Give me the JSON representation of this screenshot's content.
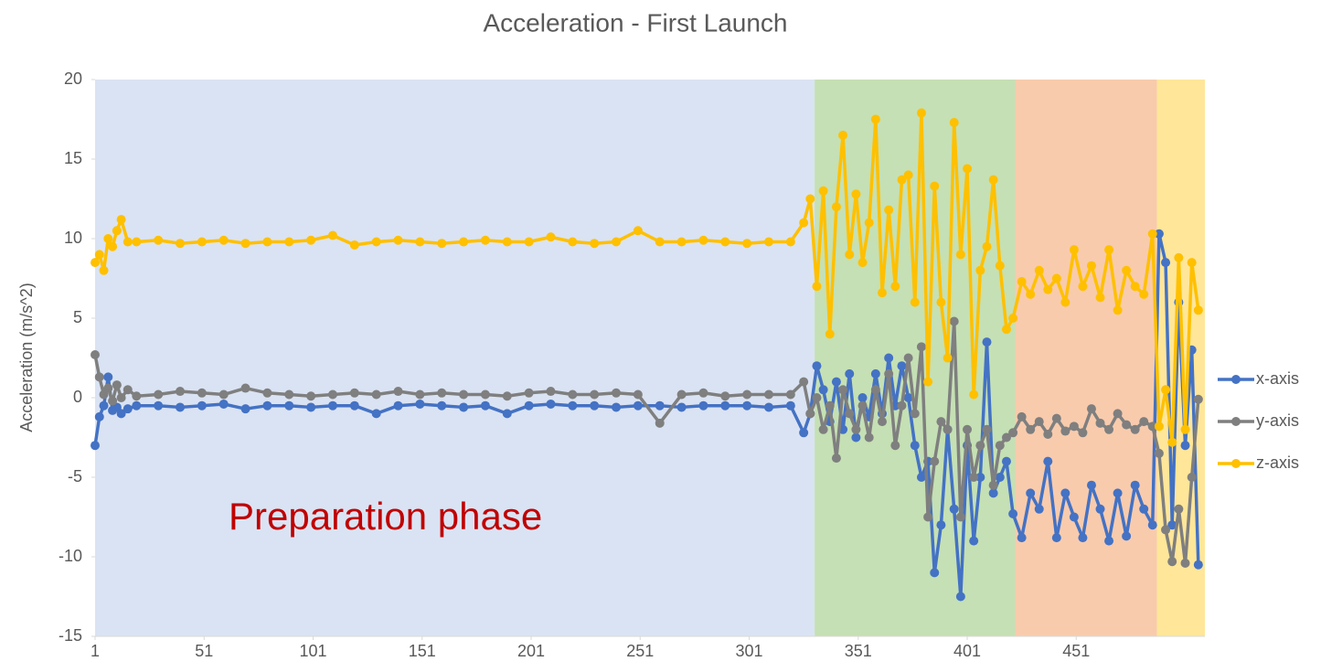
{
  "chart_data": {
    "type": "line",
    "title": "Acceleration - First Launch",
    "y_label": "Acceleration (m/s^2)",
    "annotation": "Preparation phase",
    "xlim": [
      1,
      510
    ],
    "ylim": [
      -15,
      20
    ],
    "xticks": [
      1,
      51,
      101,
      151,
      201,
      251,
      301,
      351,
      401,
      451
    ],
    "yticks": [
      -15,
      -10,
      -5,
      0,
      5,
      10,
      15,
      20
    ],
    "grid": false,
    "legend": "right",
    "phases": [
      {
        "start": 1,
        "end": 331,
        "color": "#dae3f3"
      },
      {
        "start": 331,
        "end": 423,
        "color": "#c5e0b4"
      },
      {
        "start": 423,
        "end": 488,
        "color": "#f8cbad"
      },
      {
        "start": 488,
        "end": 510,
        "color": "#ffe699"
      }
    ],
    "x": [
      1,
      3,
      5,
      7,
      9,
      11,
      13,
      16,
      20,
      30,
      40,
      50,
      60,
      70,
      80,
      90,
      100,
      110,
      120,
      130,
      140,
      150,
      160,
      170,
      180,
      190,
      200,
      210,
      220,
      230,
      240,
      250,
      260,
      270,
      280,
      290,
      300,
      310,
      320,
      326,
      329,
      332,
      335,
      338,
      341,
      344,
      347,
      350,
      353,
      356,
      359,
      362,
      365,
      368,
      371,
      374,
      377,
      380,
      383,
      386,
      389,
      392,
      395,
      398,
      401,
      404,
      407,
      410,
      413,
      416,
      419,
      422,
      426,
      430,
      434,
      438,
      442,
      446,
      450,
      454,
      458,
      462,
      466,
      470,
      474,
      478,
      482,
      486,
      489,
      492,
      495,
      498,
      501,
      504,
      507
    ],
    "series": [
      {
        "name": "x-axis",
        "color": "#4472c4",
        "values": [
          -3,
          -1.2,
          -0.5,
          1.3,
          -0.8,
          -0.6,
          -1,
          -0.7,
          -0.5,
          -0.5,
          -0.6,
          -0.5,
          -0.4,
          -0.7,
          -0.5,
          -0.5,
          -0.6,
          -0.5,
          -0.5,
          -1,
          -0.5,
          -0.4,
          -0.5,
          -0.6,
          -0.5,
          -1,
          -0.5,
          -0.4,
          -0.5,
          -0.5,
          -0.6,
          -0.5,
          -0.5,
          -0.6,
          -0.5,
          -0.5,
          -0.5,
          -0.6,
          -0.5,
          -2.2,
          -1,
          2,
          0.5,
          -1.5,
          1,
          -2,
          1.5,
          -2.5,
          0,
          -1.2,
          1.5,
          -1,
          2.5,
          -0.5,
          2,
          0,
          -3,
          -5,
          -4,
          -11,
          -8,
          -2,
          -7,
          -12.5,
          -3,
          -9,
          -5,
          3.5,
          -6,
          -5,
          -4,
          -7.3,
          -8.8,
          -6,
          -7,
          -4,
          -8.8,
          -6,
          -7.5,
          -8.8,
          -5.5,
          -7,
          -9,
          -6,
          -8.7,
          -5.5,
          -7,
          -8,
          10.3,
          8.5,
          -8,
          6,
          -3,
          3,
          -10.5
        ]
      },
      {
        "name": "y-axis",
        "color": "#7f7f7f",
        "values": [
          2.7,
          1.3,
          0.2,
          0.6,
          -0.2,
          0.8,
          0,
          0.5,
          0.1,
          0.2,
          0.4,
          0.3,
          0.2,
          0.6,
          0.3,
          0.2,
          0.1,
          0.2,
          0.3,
          0.2,
          0.4,
          0.2,
          0.3,
          0.2,
          0.2,
          0.1,
          0.3,
          0.4,
          0.2,
          0.2,
          0.3,
          0.2,
          -1.6,
          0.2,
          0.3,
          0.1,
          0.2,
          0.2,
          0.2,
          1,
          -1,
          0,
          -2,
          -0.5,
          -3.8,
          0.5,
          -1,
          -2,
          -0.5,
          -2.5,
          0.5,
          -1.5,
          1.5,
          -3,
          -0.5,
          2.5,
          -1,
          3.2,
          -7.5,
          -4,
          -1.5,
          -2,
          4.8,
          -7.5,
          -2,
          -5,
          -3,
          -2,
          -5.5,
          -3,
          -2.5,
          -2.2,
          -1.2,
          -2,
          -1.5,
          -2.3,
          -1.3,
          -2.1,
          -1.8,
          -2.2,
          -0.7,
          -1.6,
          -2,
          -1,
          -1.7,
          -2,
          -1.5,
          -1.8,
          -3.5,
          -8.3,
          -10.3,
          -7,
          -10.4,
          -5,
          -0.1
        ]
      },
      {
        "name": "z-axis",
        "color": "#ffc000",
        "values": [
          8.5,
          9,
          8,
          10,
          9.5,
          10.5,
          11.2,
          9.8,
          9.8,
          9.9,
          9.7,
          9.8,
          9.9,
          9.7,
          9.8,
          9.8,
          9.9,
          10.2,
          9.6,
          9.8,
          9.9,
          9.8,
          9.7,
          9.8,
          9.9,
          9.8,
          9.8,
          10.1,
          9.8,
          9.7,
          9.8,
          10.5,
          9.8,
          9.8,
          9.9,
          9.8,
          9.7,
          9.8,
          9.8,
          11,
          12.5,
          7,
          13,
          4,
          12,
          16.5,
          9,
          12.8,
          8.5,
          11,
          17.5,
          6.6,
          11.8,
          7,
          13.7,
          14,
          6,
          17.9,
          1,
          13.3,
          6,
          2.5,
          17.3,
          9,
          14.4,
          0.2,
          8,
          9.5,
          13.7,
          8.3,
          4.3,
          5,
          7.3,
          6.5,
          8,
          6.8,
          7.5,
          6,
          9.3,
          7,
          8.3,
          6.3,
          9.3,
          5.5,
          8,
          7,
          6.5,
          10.3,
          -1.8,
          0.5,
          -2.8,
          8.8,
          -2,
          8.5,
          5.5
        ]
      }
    ]
  }
}
